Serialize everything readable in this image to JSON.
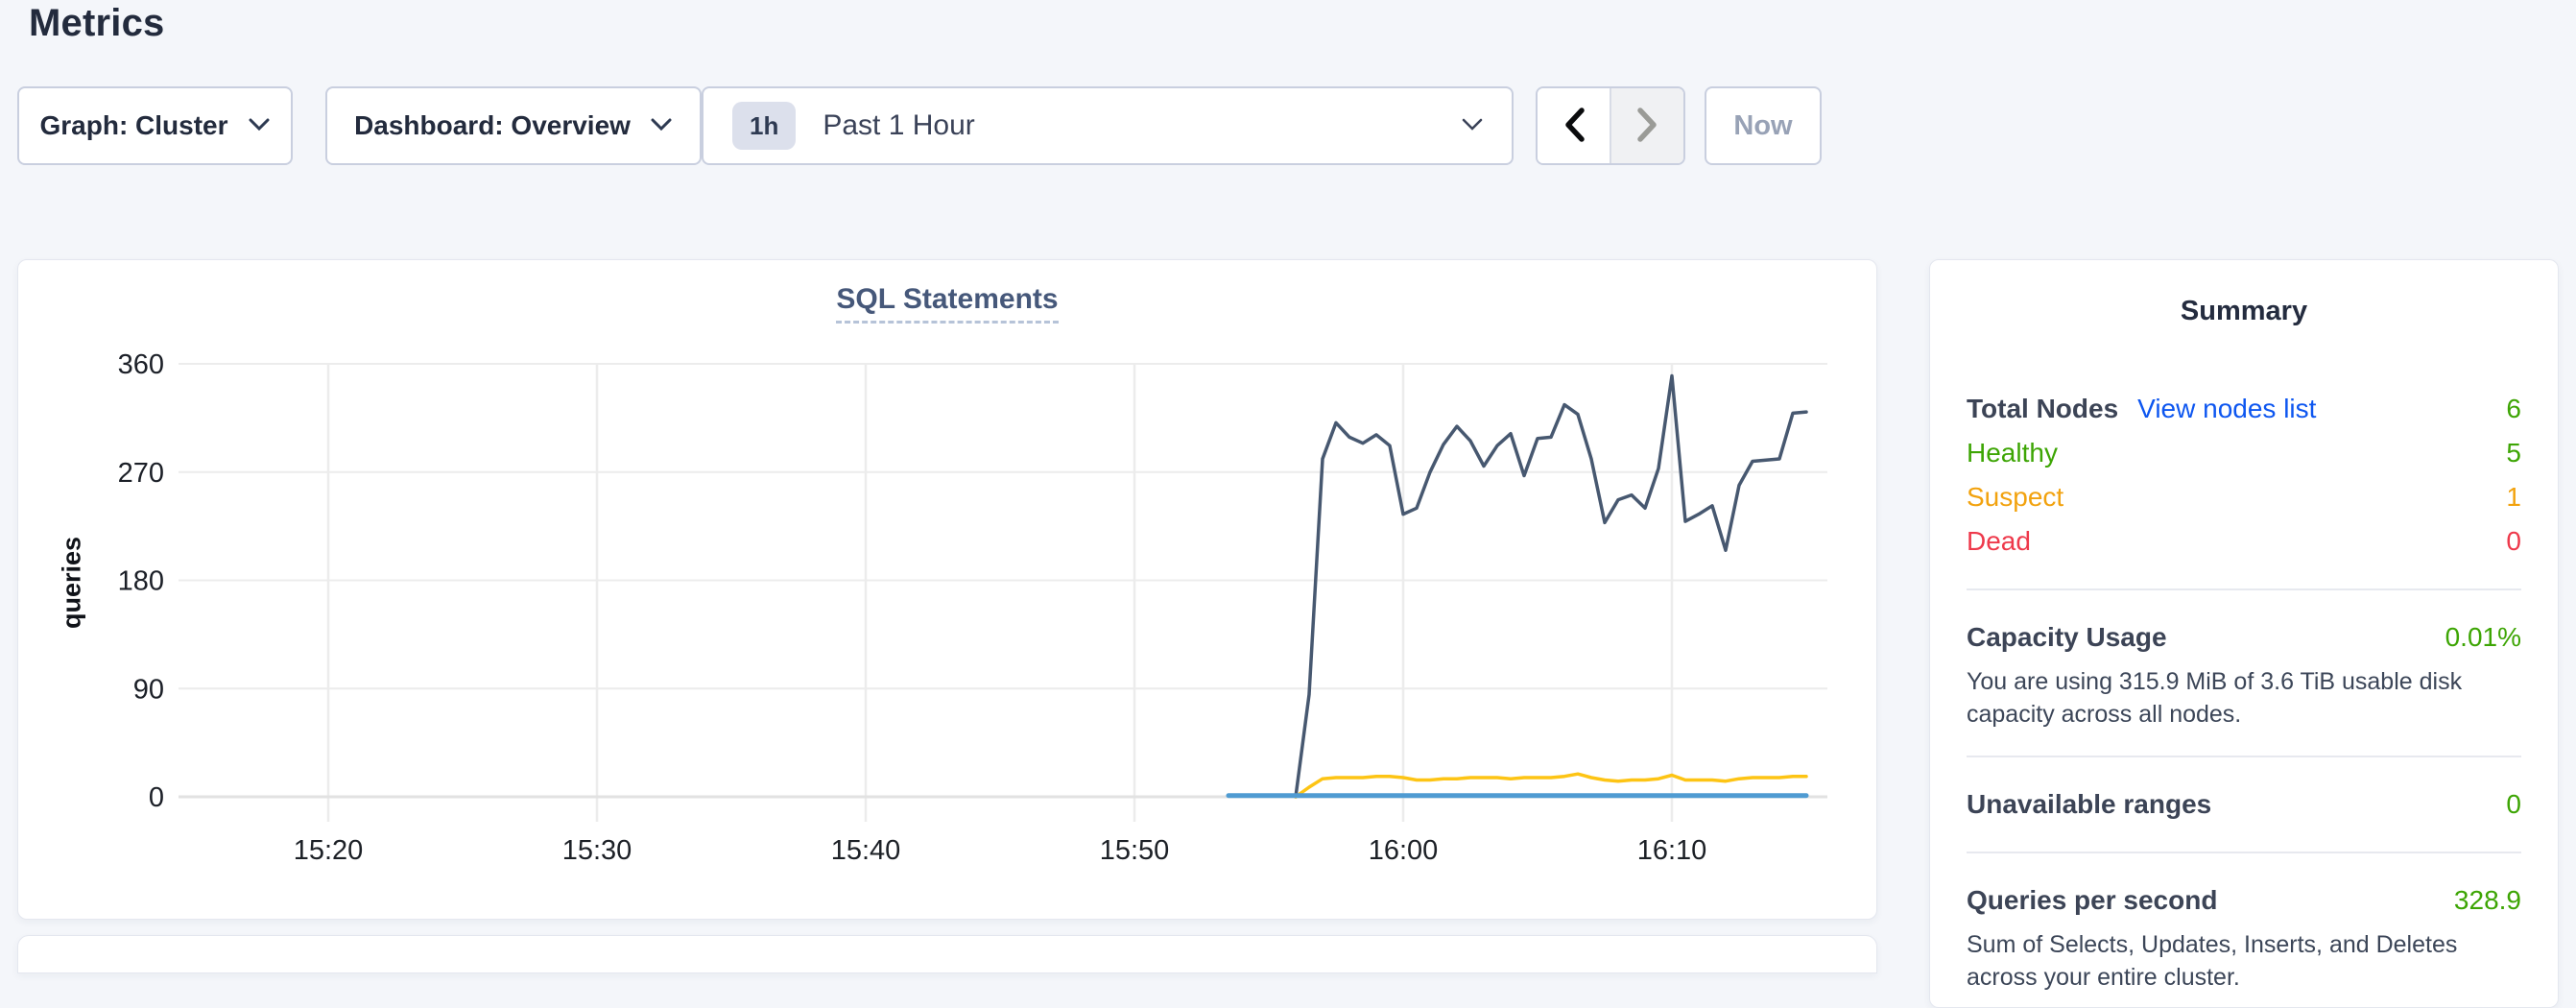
{
  "page_title": "Metrics",
  "toolbar": {
    "graph_label": "Graph: Cluster",
    "dashboard_label": "Dashboard: Overview",
    "time_badge": "1h",
    "time_label": "Past 1 Hour",
    "now_label": "Now"
  },
  "summary": {
    "title": "Summary",
    "total_nodes_label": "Total Nodes",
    "total_nodes_link": "View nodes list",
    "total_nodes_value": "6",
    "healthy_label": "Healthy",
    "healthy_value": "5",
    "suspect_label": "Suspect",
    "suspect_value": "1",
    "dead_label": "Dead",
    "dead_value": "0",
    "capacity_label": "Capacity Usage",
    "capacity_value": "0.01%",
    "capacity_desc": "You are using 315.9 MiB of 3.6 TiB usable disk capacity across all nodes.",
    "unavailable_label": "Unavailable ranges",
    "unavailable_value": "0",
    "qps_label": "Queries per second",
    "qps_value": "328.9",
    "qps_desc": "Sum of Selects, Updates, Inserts, and Deletes across your entire cluster."
  },
  "colors": {
    "green": "#3da504",
    "orange": "#f2a20e",
    "red": "#ee394b",
    "link_blue": "#0d56f0",
    "heading": "#232b3d"
  },
  "chart_data": {
    "type": "line",
    "title": "SQL Statements",
    "xlabel": "",
    "ylabel": "queries",
    "ylim": [
      0,
      360
    ],
    "yticks": [
      0,
      90,
      180,
      270,
      360
    ],
    "xticks": [
      "15:20",
      "15:30",
      "15:40",
      "15:50",
      "16:00",
      "16:10"
    ],
    "x_window": [
      "15:14:30",
      "16:15:30"
    ],
    "grid": true,
    "legend_position": "none",
    "x": [
      "15:53:30",
      "15:54:00",
      "15:54:30",
      "15:55:00",
      "15:55:30",
      "15:56:00",
      "15:56:30",
      "15:57:00",
      "15:57:30",
      "15:58:00",
      "15:58:30",
      "15:59:00",
      "15:59:30",
      "16:00:00",
      "16:00:30",
      "16:01:00",
      "16:01:30",
      "16:02:00",
      "16:02:30",
      "16:03:00",
      "16:03:30",
      "16:04:00",
      "16:04:30",
      "16:05:00",
      "16:05:30",
      "16:06:00",
      "16:06:30",
      "16:07:00",
      "16:07:30",
      "16:08:00",
      "16:08:30",
      "16:09:00",
      "16:09:30",
      "16:10:00",
      "16:10:30",
      "16:11:00",
      "16:11:30",
      "16:12:00",
      "16:12:30",
      "16:13:00",
      "16:13:30",
      "16:14:00",
      "16:14:30",
      "16:15:00"
    ],
    "series": [
      {
        "name": "dark-navy-series",
        "color": "#475870",
        "width": 3.5,
        "values": [
          null,
          null,
          null,
          null,
          null,
          0,
          85,
          281,
          311,
          299,
          294,
          301,
          292,
          235,
          240,
          270,
          293,
          308,
          296,
          275,
          292,
          302,
          267,
          298,
          299,
          326,
          318,
          281,
          228,
          247,
          251,
          240,
          273,
          350,
          229,
          235,
          242,
          205,
          259,
          279,
          280,
          281,
          319,
          320
        ]
      },
      {
        "name": "yellow-series",
        "color": "#fdc414",
        "width": 3.5,
        "values": [
          null,
          null,
          null,
          null,
          null,
          0,
          8,
          15,
          16,
          16,
          16,
          17,
          17,
          16,
          14,
          14,
          15,
          15,
          16,
          16,
          16,
          15,
          16,
          16,
          16,
          17,
          19,
          16,
          14,
          13,
          14,
          14,
          15,
          18,
          14,
          14,
          14,
          13,
          15,
          16,
          16,
          16,
          17,
          17
        ]
      },
      {
        "name": "blue-series",
        "color": "#4f9bd2",
        "width": 5,
        "values": [
          1,
          1,
          1,
          1,
          1,
          1,
          1,
          1,
          1,
          1,
          1,
          1,
          1,
          1,
          1,
          1,
          1,
          1,
          1,
          1,
          1,
          1,
          1,
          1,
          1,
          1,
          1,
          1,
          1,
          1,
          1,
          1,
          1,
          1,
          1,
          1,
          1,
          1,
          1,
          1,
          1,
          1,
          1,
          1
        ]
      }
    ]
  }
}
